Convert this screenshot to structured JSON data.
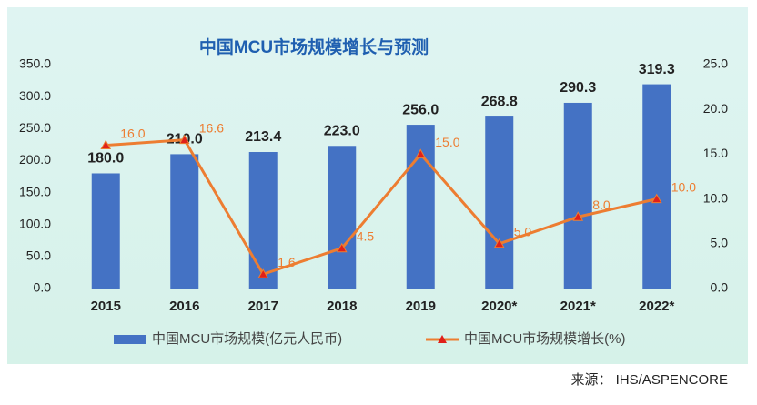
{
  "chart_data": {
    "type": "bar",
    "title": "中国MCU市场规模增长与预测",
    "categories": [
      "2015",
      "2016",
      "2017",
      "2018",
      "2019",
      "2020*",
      "2021*",
      "2022*"
    ],
    "series": [
      {
        "name": "中国MCU市场规模(亿元人民币)",
        "type": "bar",
        "color": "#4472c4",
        "axis": "y",
        "values": [
          180.0,
          210.0,
          213.4,
          223.0,
          256.0,
          268.8,
          290.3,
          319.3
        ],
        "value_labels": [
          "180.0",
          "210.0",
          "213.4",
          "223.0",
          "256.0",
          "268.8",
          "290.3",
          "319.3"
        ]
      },
      {
        "name": "中国MCU市场规模增长(%)",
        "type": "line",
        "color": "#ed7d31",
        "marker_color": "#e0201a",
        "axis": "y2",
        "values": [
          16.0,
          16.6,
          1.6,
          4.5,
          15.0,
          5.0,
          8.0,
          10.0
        ],
        "value_labels": [
          "16.0",
          "16.6",
          "1.6",
          "4.5",
          "15.0",
          "5.0",
          "8.0",
          "10.0"
        ]
      }
    ],
    "ylim": [
      0,
      350
    ],
    "yticks": [
      {
        "value": 0,
        "label": "0.0"
      },
      {
        "value": 50,
        "label": "50.0"
      },
      {
        "value": 100,
        "label": "100.0"
      },
      {
        "value": 150,
        "label": "150.0"
      },
      {
        "value": 200,
        "label": "200.0"
      },
      {
        "value": 250,
        "label": "250.0"
      },
      {
        "value": 300,
        "label": "300.0"
      },
      {
        "value": 350,
        "label": "350.0"
      }
    ],
    "y2lim": [
      0,
      25
    ],
    "y2ticks": [
      {
        "value": 0,
        "label": "0.0"
      },
      {
        "value": 5,
        "label": "5.0"
      },
      {
        "value": 10,
        "label": "10.0"
      },
      {
        "value": 15,
        "label": "15.0"
      },
      {
        "value": 20,
        "label": "20.0"
      },
      {
        "value": 25,
        "label": "25.0"
      }
    ],
    "grid": false,
    "legend": "bottom",
    "source": "来源： IHS/ASPENCORE"
  }
}
